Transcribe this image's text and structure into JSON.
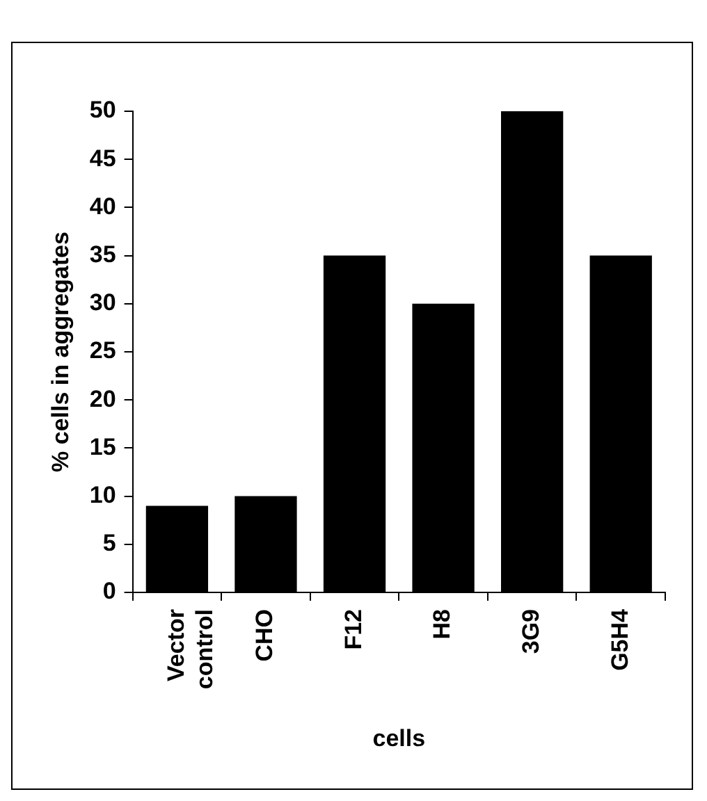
{
  "chart_data": {
    "type": "bar",
    "xlabel": "cells",
    "ylabel": "% cells in aggregates",
    "categories": [
      "Vector\ncontrol",
      "CHO",
      "F12",
      "H8",
      "3G9",
      "G5H4"
    ],
    "values": [
      9,
      10,
      35,
      30,
      50,
      35
    ],
    "color": "#000000",
    "ylim": [
      0,
      50
    ],
    "yticks": [
      0,
      5,
      10,
      15,
      20,
      25,
      30,
      35,
      40,
      45,
      50
    ],
    "grid": false,
    "legend": false
  }
}
